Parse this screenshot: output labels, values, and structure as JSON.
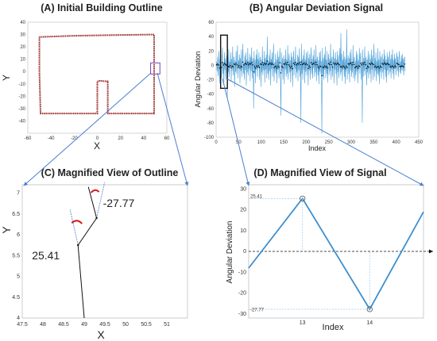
{
  "chart_data": [
    {
      "type": "line",
      "panel": "A",
      "title": "(A) Initial Building Outline",
      "xlabel": "X",
      "ylabel": "Y",
      "xlim": [
        -60,
        60
      ],
      "ylim": [
        -50,
        40
      ],
      "xticks": [
        -60,
        -40,
        -20,
        0,
        20,
        40,
        60
      ],
      "yticks": [
        -40,
        -30,
        -20,
        -10,
        0,
        10,
        20,
        30,
        40
      ],
      "series": [
        {
          "x": [
            -50,
            48,
            49,
            49,
            -49,
            -50,
            -50,
            -50,
            0,
            0,
            3,
            8,
            9,
            9,
            49
          ],
          "y": [
            8,
            30,
            20,
            -34,
            -34,
            -20,
            0,
            28,
            -34,
            -8,
            -7,
            -8,
            -10,
            -34,
            -34
          ],
          "outline": [
            [
              -50,
              28
            ],
            [
              -20,
              29
            ],
            [
              10,
              29.5
            ],
            [
              49,
              30
            ],
            [
              49,
              10
            ],
            [
              49,
              -34
            ],
            [
              9,
              -34
            ],
            [
              9,
              -8
            ],
            [
              2,
              -7.5
            ],
            [
              0,
              -8
            ],
            [
              0,
              -34
            ],
            [
              -49,
              -34
            ],
            [
              -50,
              0
            ],
            [
              -50,
              28
            ]
          ]
        }
      ],
      "color": "#9b2a2a",
      "highlight_box_color": "#7b3fbf"
    },
    {
      "type": "line",
      "panel": "B",
      "title": "(B) Angular Deviation Signal",
      "xlabel": "Index",
      "ylabel": "Angular Deviation",
      "xlim": [
        0,
        450
      ],
      "ylim": [
        -100,
        60
      ],
      "xticks": [
        0,
        50,
        100,
        150,
        200,
        250,
        300,
        350,
        400,
        450
      ],
      "yticks": [
        -100,
        -80,
        -60,
        -40,
        -20,
        0,
        20,
        40,
        60
      ],
      "color": "#4a9fd8",
      "series": [
        {
          "y": [
            5,
            -8,
            12,
            -15,
            3,
            20,
            -25,
            8,
            -5,
            15,
            -18,
            6,
            25,
            -12,
            4,
            -28,
            18,
            -6,
            10,
            -20,
            2,
            14,
            -45,
            8,
            -10,
            22,
            -16,
            5,
            -3,
            18,
            -22,
            9,
            -7,
            26,
            -14,
            3,
            12,
            -30,
            6,
            -9,
            20,
            -12,
            4,
            28,
            -18,
            7,
            -4,
            15,
            -25,
            10,
            -8,
            22,
            -16,
            5,
            30,
            -12,
            3,
            -20,
            14,
            -6,
            18,
            -28,
            8,
            -10,
            24,
            -14,
            6,
            -5,
            16,
            -22,
            12,
            -8,
            25,
            -18,
            4,
            10,
            -60,
            20,
            -12,
            8,
            -25,
            15,
            -6,
            22,
            -16,
            9,
            -4,
            18,
            -20,
            6,
            12,
            -30,
            8,
            -10,
            26,
            -14,
            5,
            -7,
            20,
            -24,
            10,
            -6,
            15,
            -18,
            40,
            -12,
            6,
            -20,
            14,
            -8,
            22,
            -28,
            9,
            -5,
            18,
            -16,
            7,
            30,
            -22,
            4,
            -10,
            16,
            -12,
            8,
            -25,
            20,
            -6,
            12,
            -18,
            5,
            24,
            -14,
            -70,
            18,
            -9,
            10,
            -20,
            6,
            14,
            -26,
            9,
            -6,
            22,
            -16,
            8,
            -12,
            28,
            -20,
            5,
            16,
            -10,
            7,
            -24,
            18,
            -8,
            12,
            -30,
            6,
            20,
            -14,
            9,
            -5,
            26,
            -18,
            4,
            -10,
            15,
            -22,
            12,
            -7,
            24,
            -16,
            6,
            -80,
            30,
            -12,
            9,
            -20,
            14,
            -6,
            22,
            -25,
            8,
            -9,
            18,
            -14,
            5,
            20,
            -28,
            10,
            -7,
            16,
            -20,
            6,
            25,
            -12,
            9,
            -18,
            14,
            -4,
            22,
            -16,
            8,
            -10,
            28,
            -22,
            5,
            12,
            -14,
            7,
            -26,
            18,
            -9,
            20,
            -12,
            6,
            -95,
            24,
            -16,
            10,
            -20,
            15,
            -6,
            26,
            -18,
            8,
            -12,
            20,
            -24,
            5,
            16,
            -14,
            9,
            -8,
            30,
            -20,
            6,
            12,
            -16,
            7,
            22,
            -25,
            10,
            -6,
            18,
            -12,
            8,
            -28,
            20,
            -9,
            14,
            -18,
            5,
            24,
            -14,
            45,
            -10,
            16,
            -22,
            8,
            -6,
            20,
            -16,
            12,
            -26,
            9,
            -8,
            50,
            -20,
            6,
            14,
            -12,
            10,
            -24,
            18,
            -7,
            22,
            -16,
            5,
            -10,
            28,
            -18,
            8,
            12,
            -22,
            6,
            -14,
            20,
            -9,
            16,
            -25,
            7,
            -6,
            24,
            -12,
            9,
            18,
            -20,
            5,
            -80,
            22,
            -16,
            10,
            -8,
            26,
            -14,
            6,
            12,
            -28,
            8,
            -10,
            20,
            -18,
            5,
            16,
            -12,
            9,
            -24,
            22,
            -6,
            14,
            -20,
            7,
            30,
            -16,
            10,
            -8,
            18,
            -22,
            6,
            -12,
            24,
            -14,
            8,
            -26,
            20,
            -9,
            12,
            -18,
            5,
            16,
            -10,
            9,
            -20,
            22,
            -6,
            14,
            -16,
            8,
            -24,
            18,
            -7,
            12,
            -14,
            6,
            20,
            -10,
            9,
            -18,
            15,
            -6,
            22,
            -12,
            8,
            -20,
            16,
            -5,
            10,
            -14,
            6,
            18,
            -8,
            12,
            -16,
            7,
            20,
            -10,
            5,
            -12,
            14,
            -6,
            16,
            -8,
            10,
            -14,
            6,
            12,
            -8
          ]
        }
      ],
      "mean_marker_color": "#111111",
      "highlight_box_color": "#111111"
    },
    {
      "type": "line",
      "panel": "C",
      "title": "(C) Magnified View of Outline",
      "xlabel": "X",
      "ylabel": "Y",
      "xlim": [
        47.5,
        51.5
      ],
      "ylim": [
        4,
        7.2
      ],
      "xticks": [
        47.5,
        48,
        48.5,
        49,
        49.5,
        50,
        50.5,
        51
      ],
      "xtick_labels": [
        "47.5",
        "48",
        "48.5",
        "49",
        "49.5",
        "50",
        "50.5",
        "51"
      ],
      "yticks": [
        4,
        4.5,
        5,
        5.5,
        6,
        6.5,
        7
      ],
      "ytick_labels": [
        "4",
        "4.5",
        "5",
        "5.5",
        "6",
        "6.5",
        "7"
      ],
      "series": [
        {
          "x": [
            49.0,
            48.85,
            49.3,
            49.1
          ],
          "y": [
            4.0,
            5.75,
            6.4,
            7.15
          ]
        }
      ],
      "annotations": [
        {
          "label": "-27.77",
          "x": 49.3,
          "y": 6.4
        },
        {
          "label": "25.41",
          "x": 48.85,
          "y": 5.75
        }
      ],
      "arc_color": "#d11b1b",
      "direction_color": "#4a7fd0"
    },
    {
      "type": "line",
      "panel": "D",
      "title": "(D) Magnified View of Signal",
      "xlabel": "Index",
      "ylabel": "Angular Deviation",
      "xlim": [
        12.2,
        14.8
      ],
      "ylim": [
        -32,
        32
      ],
      "xticks": [
        13,
        14
      ],
      "yticks": [
        -30,
        -20,
        -10,
        0,
        10,
        20,
        30
      ],
      "yticklabels_extra": [
        "25.41",
        "-27.77"
      ],
      "series": [
        {
          "x": [
            12.2,
            13,
            14,
            14.8
          ],
          "y": [
            -8,
            25.41,
            -27.77,
            19
          ]
        }
      ],
      "markers": [
        {
          "label": "25.41",
          "x": 13,
          "y": 25.41
        },
        {
          "label": "-27.77",
          "x": 14,
          "y": -27.77
        }
      ],
      "color": "#3d8fd0"
    }
  ],
  "connector_color": "#4a7fd0"
}
